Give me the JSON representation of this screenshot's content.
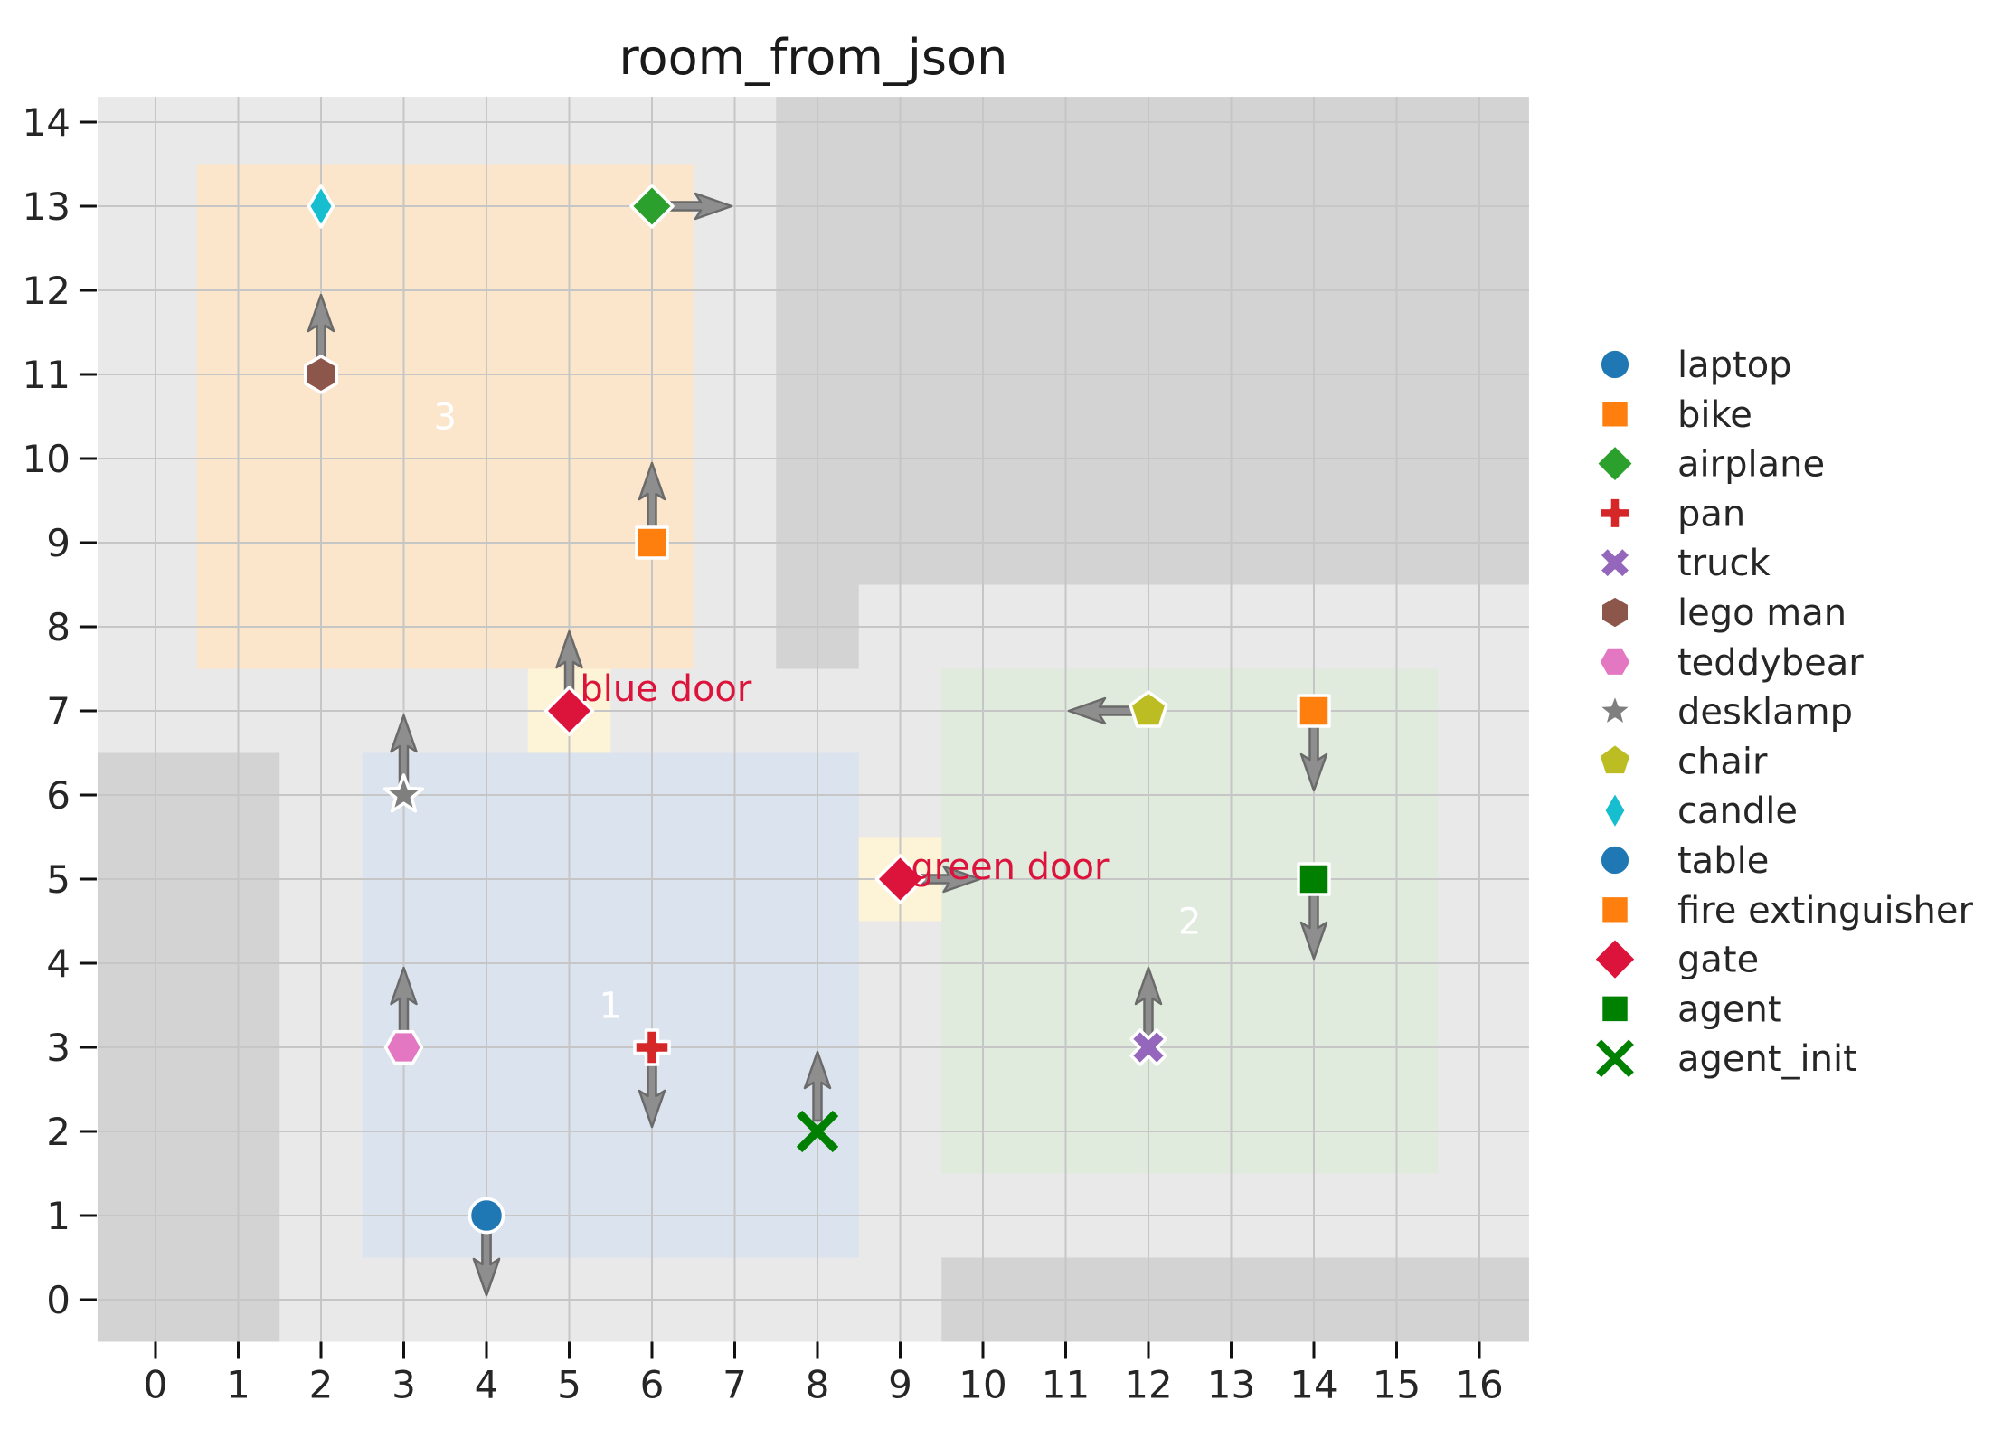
{
  "title": "room_from_json",
  "colors": {
    "figure_bg": "#ffffff",
    "floor": "#e9e9e9",
    "wall": "#d3d3d3",
    "grid": "#c6c6c6",
    "room1_fill": "#dbe3ee",
    "room2_fill": "#e0ebdd",
    "room3_fill": "#fbe5cb",
    "door_fill": "#fdf3d6",
    "arrow_fill": "#8e8e8e",
    "arrow_stroke": "#6a6a6a",
    "marker_edge": "#ffffff",
    "tick_text": "#262626",
    "title_text": "#1a1a1a",
    "door_label_text": "#dc143c",
    "room_label_text": "#ffffff",
    "legend_text": "#262626"
  },
  "chart_data": {
    "type": "scatter",
    "title": "room_from_json",
    "xlabel": "",
    "ylabel": "",
    "xlim": [
      -0.7,
      16.6
    ],
    "ylim": [
      -0.5,
      14.3
    ],
    "x_ticks": [
      0,
      1,
      2,
      3,
      4,
      5,
      6,
      7,
      8,
      9,
      10,
      11,
      12,
      13,
      14,
      15,
      16
    ],
    "y_ticks": [
      0,
      1,
      2,
      3,
      4,
      5,
      6,
      7,
      8,
      9,
      10,
      11,
      12,
      13,
      14
    ],
    "grid": true,
    "legend_position": "center right, outside axes",
    "rooms": [
      {
        "label": "1",
        "x0": 2.5,
        "y0": 0.5,
        "x1": 8.5,
        "y1": 6.5,
        "fill_key": "room1_fill",
        "label_x": 5.5,
        "label_y": 3.5
      },
      {
        "label": "2",
        "x0": 9.5,
        "y0": 1.5,
        "x1": 15.5,
        "y1": 7.5,
        "fill_key": "room2_fill",
        "label_x": 12.5,
        "label_y": 4.5
      },
      {
        "label": "3",
        "x0": 0.5,
        "y0": 7.5,
        "x1": 6.5,
        "y1": 13.5,
        "fill_key": "room3_fill",
        "label_x": 3.5,
        "label_y": 10.5
      }
    ],
    "walls": [
      {
        "x0": -0.7,
        "y0": -0.5,
        "x1": 1.5,
        "y1": 6.5
      },
      {
        "x0": 7.5,
        "y0": 8.5,
        "x1": 16.6,
        "y1": 14.3
      },
      {
        "x0": 7.5,
        "y0": 7.5,
        "x1": 8.5,
        "y1": 8.5
      },
      {
        "x0": 9.5,
        "y0": -0.5,
        "x1": 16.6,
        "y1": 0.5
      }
    ],
    "doors": [
      {
        "name": "blue door",
        "cell_x": 5,
        "cell_y": 7,
        "label_x": 5.13,
        "label_y": 7.27
      },
      {
        "name": "green door",
        "cell_x": 9,
        "cell_y": 5,
        "label_x": 9.13,
        "label_y": 5.15
      }
    ],
    "objects": [
      {
        "name": "laptop",
        "x": 4,
        "y": 1,
        "marker": "circle",
        "color": "#1f77b4",
        "orientation": "down"
      },
      {
        "name": "bike",
        "x": 6,
        "y": 9,
        "marker": "square",
        "color": "#ff7f0e",
        "orientation": "up"
      },
      {
        "name": "airplane",
        "x": 6,
        "y": 13,
        "marker": "diamond",
        "color": "#2ca02c",
        "orientation": "right"
      },
      {
        "name": "pan",
        "x": 6,
        "y": 3,
        "marker": "plus",
        "color": "#d62728",
        "orientation": "down"
      },
      {
        "name": "truck",
        "x": 12,
        "y": 3,
        "marker": "x_filled",
        "color": "#9467bd",
        "orientation": "up"
      },
      {
        "name": "lego man",
        "x": 2,
        "y": 11,
        "marker": "hexagon",
        "color": "#8c564b",
        "orientation": "up"
      },
      {
        "name": "teddybear",
        "x": 3,
        "y": 3,
        "marker": "hexagon_flat",
        "color": "#e377c2",
        "orientation": "up"
      },
      {
        "name": "desklamp",
        "x": 3,
        "y": 6,
        "marker": "star",
        "color": "#7f7f7f",
        "orientation": "up"
      },
      {
        "name": "chair",
        "x": 12,
        "y": 7,
        "marker": "pentagon",
        "color": "#bcbd22",
        "orientation": "left"
      },
      {
        "name": "candle",
        "x": 2,
        "y": 13,
        "marker": "thin_diamond",
        "color": "#17becf",
        "orientation": null
      },
      {
        "name": "table",
        "x": 4,
        "y": 1,
        "marker": "circle",
        "color": "#1f77b4",
        "orientation": "down"
      },
      {
        "name": "fire extinguisher",
        "x": 14,
        "y": 7,
        "marker": "square",
        "color": "#ff7f0e",
        "orientation": "down"
      },
      {
        "name": "gate",
        "x": 5,
        "y": 7,
        "marker": "diamond_big",
        "color": "#dc143c",
        "orientation": "up"
      },
      {
        "name": "gate",
        "x": 9,
        "y": 5,
        "marker": "diamond_big",
        "color": "#dc143c",
        "orientation": "right"
      },
      {
        "name": "agent",
        "x": 14,
        "y": 5,
        "marker": "square",
        "color": "#008000",
        "orientation": "down"
      },
      {
        "name": "agent_init",
        "x": 8,
        "y": 2,
        "marker": "x_stroke",
        "color": "#008000",
        "orientation": "up"
      }
    ]
  },
  "legend": {
    "items": [
      {
        "label": "laptop",
        "marker": "circle",
        "color": "#1f77b4"
      },
      {
        "label": "bike",
        "marker": "square",
        "color": "#ff7f0e"
      },
      {
        "label": "airplane",
        "marker": "diamond",
        "color": "#2ca02c"
      },
      {
        "label": "pan",
        "marker": "plus",
        "color": "#d62728"
      },
      {
        "label": "truck",
        "marker": "x_filled",
        "color": "#9467bd"
      },
      {
        "label": "lego man",
        "marker": "hexagon",
        "color": "#8c564b"
      },
      {
        "label": "teddybear",
        "marker": "hexagon_flat",
        "color": "#e377c2"
      },
      {
        "label": "desklamp",
        "marker": "star",
        "color": "#7f7f7f"
      },
      {
        "label": "chair",
        "marker": "pentagon",
        "color": "#bcbd22"
      },
      {
        "label": "candle",
        "marker": "thin_diamond",
        "color": "#17becf"
      },
      {
        "label": "table",
        "marker": "circle",
        "color": "#1f77b4"
      },
      {
        "label": "fire extinguisher",
        "marker": "square",
        "color": "#ff7f0e"
      },
      {
        "label": "gate",
        "marker": "diamond_big",
        "color": "#dc143c"
      },
      {
        "label": "agent",
        "marker": "square",
        "color": "#008000"
      },
      {
        "label": "agent_init",
        "marker": "x_stroke",
        "color": "#008000"
      }
    ]
  }
}
